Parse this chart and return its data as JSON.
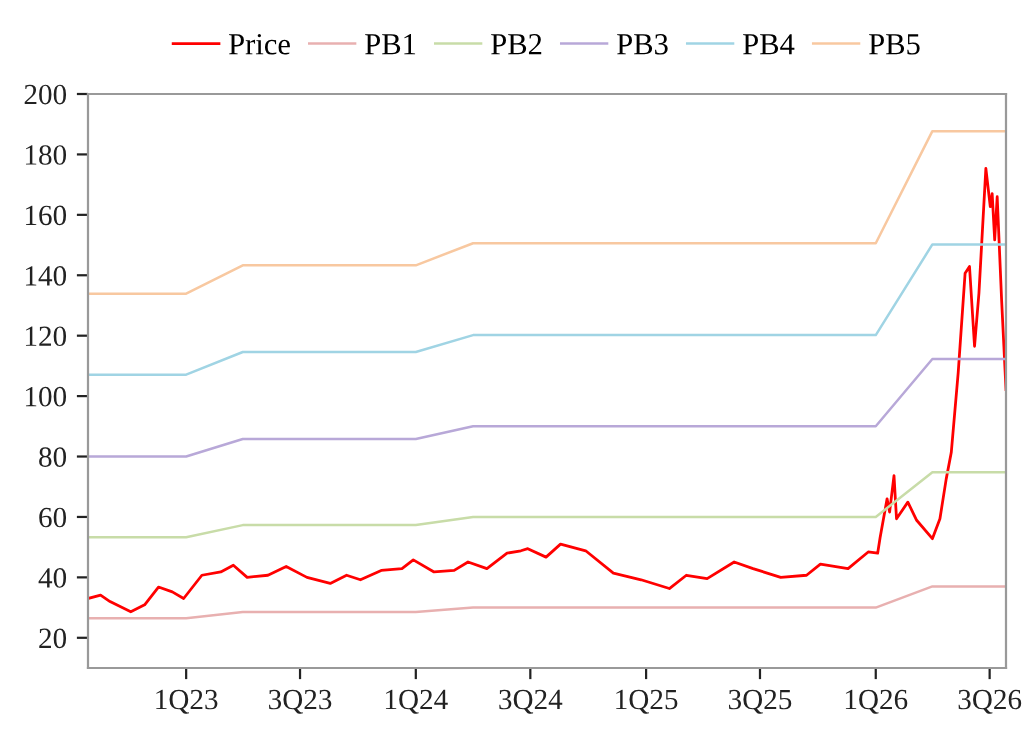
{
  "chart_data": {
    "type": "line",
    "legend": "top",
    "grid": false,
    "marker": "none",
    "line_style": "solid",
    "xlim": [
      "2022-07-29",
      "2026-07-27"
    ],
    "ylim": [
      10,
      200
    ],
    "xticks": [
      {
        "value": "2023-01-01",
        "label": "1Q23"
      },
      {
        "value": "2023-07-01",
        "label": "3Q23"
      },
      {
        "value": "2024-01-01",
        "label": "1Q24"
      },
      {
        "value": "2024-07-01",
        "label": "3Q24"
      },
      {
        "value": "2025-01-01",
        "label": "1Q25"
      },
      {
        "value": "2025-07-01",
        "label": "3Q25"
      },
      {
        "value": "2026-01-01",
        "label": "1Q26"
      },
      {
        "value": "2026-07-01",
        "label": "3Q26"
      }
    ],
    "yticks": [
      20,
      40,
      60,
      80,
      100,
      120,
      140,
      160,
      180,
      200
    ],
    "series": [
      {
        "name": "Price",
        "color": "#ff0000",
        "x": [
          "2022-07-29",
          "2022-08-18",
          "2022-09-02",
          "2022-10-05",
          "2022-10-27",
          "2022-11-18",
          "2022-12-10",
          "2022-12-28",
          "2023-01-26",
          "2023-02-25",
          "2023-03-17",
          "2023-04-08",
          "2023-05-11",
          "2023-06-09",
          "2023-07-12",
          "2023-08-18",
          "2023-09-13",
          "2023-10-05",
          "2023-11-07",
          "2023-12-10",
          "2023-12-28",
          "2024-01-30",
          "2024-03-02",
          "2024-03-24",
          "2024-04-23",
          "2024-05-25",
          "2024-06-16",
          "2024-06-27",
          "2024-07-26",
          "2024-08-18",
          "2024-09-27",
          "2024-11-10",
          "2024-12-24",
          "2025-02-07",
          "2025-03-06",
          "2025-04-08",
          "2025-05-21",
          "2025-06-20",
          "2025-08-03",
          "2025-09-13",
          "2025-10-05",
          "2025-11-18",
          "2025-12-20",
          "2026-01-04",
          "2026-01-08",
          "2026-01-19",
          "2026-01-23",
          "2026-01-30",
          "2026-02-03",
          "2026-02-21",
          "2026-03-07",
          "2026-04-01",
          "2026-04-13",
          "2026-04-23",
          "2026-05-01",
          "2026-05-12",
          "2026-05-23",
          "2026-05-30",
          "2026-06-07",
          "2026-06-14",
          "2026-06-25",
          "2026-07-02",
          "2026-07-05",
          "2026-07-09",
          "2026-07-13",
          "2026-07-20",
          "2026-07-27"
        ],
        "values": [
          33.0,
          34.1,
          32,
          28.6,
          30.9,
          36.8,
          35.2,
          33.0,
          40.7,
          41.8,
          44,
          40,
          40.7,
          43.6,
          40,
          38,
          40.7,
          39.2,
          42.3,
          42.9,
          45.8,
          41.8,
          42.3,
          45.1,
          42.9,
          48,
          48.8,
          49.5,
          46.7,
          51,
          48.8,
          41.4,
          39.2,
          36.3,
          40.7,
          39.6,
          45.1,
          42.9,
          40,
          40.7,
          44.4,
          42.9,
          48.4,
          48,
          53.3,
          66,
          61.6,
          73.7,
          59.4,
          64.9,
          58.9,
          52.8,
          59.4,
          72.6,
          81.3,
          107.7,
          140.7,
          142.9,
          116.5,
          134.1,
          175.4,
          162.7,
          167,
          151.7,
          166,
          131.9,
          102.2
        ]
      },
      {
        "name": "PB1",
        "color": "#e8b0b0",
        "x": [
          "2022-07-29",
          "2023-01-01",
          "2023-04-01",
          "2024-01-01",
          "2024-04-01",
          "2026-01-01",
          "2026-04-01",
          "2026-07-27"
        ],
        "values": [
          26.5,
          26.5,
          28.5,
          28.5,
          30,
          30,
          37,
          37
        ]
      },
      {
        "name": "PB2",
        "color": "#c8dca8",
        "x": [
          "2022-07-29",
          "2023-01-01",
          "2023-04-01",
          "2024-01-01",
          "2024-04-01",
          "2026-01-01",
          "2026-04-01",
          "2026-07-27"
        ],
        "values": [
          53.3,
          53.3,
          57.3,
          57.3,
          60,
          60,
          74.8,
          74.8
        ]
      },
      {
        "name": "PB3",
        "color": "#b8a8d8",
        "x": [
          "2022-07-29",
          "2023-01-01",
          "2023-04-01",
          "2024-01-01",
          "2024-04-01",
          "2026-01-01",
          "2026-04-01",
          "2026-07-27"
        ],
        "values": [
          80,
          80,
          85.8,
          85.8,
          90,
          90,
          112.3,
          112.3
        ]
      },
      {
        "name": "PB4",
        "color": "#a0d4e4",
        "x": [
          "2022-07-29",
          "2023-01-01",
          "2023-04-01",
          "2024-01-01",
          "2024-04-01",
          "2026-01-01",
          "2026-04-01",
          "2026-07-27"
        ],
        "values": [
          107.1,
          107.1,
          114.6,
          114.6,
          120.2,
          120.2,
          150.2,
          150.2
        ]
      },
      {
        "name": "PB5",
        "color": "#f8c8a0",
        "x": [
          "2022-07-29",
          "2023-01-01",
          "2023-04-01",
          "2024-01-01",
          "2024-04-01",
          "2026-01-01",
          "2026-04-01",
          "2026-07-27"
        ],
        "values": [
          133.9,
          133.9,
          143.3,
          143.3,
          150.6,
          150.6,
          187.7,
          187.7
        ]
      }
    ]
  }
}
